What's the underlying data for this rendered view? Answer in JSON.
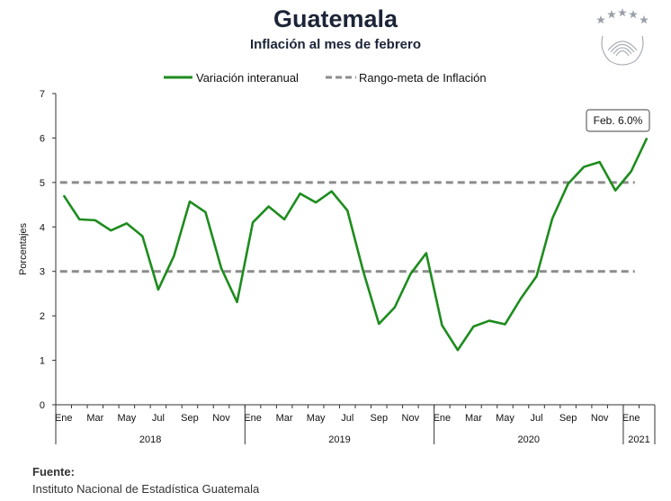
{
  "header": {
    "title": "Guatemala",
    "subtitle": "Inflación al mes de febrero"
  },
  "logo": {
    "icon": "central-bank-seal-icon",
    "color": "#9aa0a8"
  },
  "source": {
    "label": "Fuente:",
    "text": "Instituto Nacional de Estadística Guatemala"
  },
  "chart_data": {
    "type": "line",
    "ylabel": "Porcentajes",
    "ylim": [
      0,
      7
    ],
    "yticks": [
      0,
      1,
      2,
      3,
      4,
      5,
      6,
      7
    ],
    "grid": false,
    "legend_position": "top-center",
    "month_labels": [
      "Ene",
      "Mar",
      "May",
      "Jul",
      "Sep",
      "Nov",
      "Ene",
      "Mar",
      "May",
      "Jul",
      "Sep",
      "Nov",
      "Ene",
      "Mar",
      "May",
      "Jul",
      "Sep",
      "Nov",
      "Ene"
    ],
    "year_labels": [
      "2018",
      "2019",
      "2020",
      "2021"
    ],
    "x": [
      "2018-01",
      "2018-02",
      "2018-03",
      "2018-04",
      "2018-05",
      "2018-06",
      "2018-07",
      "2018-08",
      "2018-09",
      "2018-10",
      "2018-11",
      "2018-12",
      "2019-01",
      "2019-02",
      "2019-03",
      "2019-04",
      "2019-05",
      "2019-06",
      "2019-07",
      "2019-08",
      "2019-09",
      "2019-10",
      "2019-11",
      "2019-12",
      "2020-01",
      "2020-02",
      "2020-03",
      "2020-04",
      "2020-05",
      "2020-06",
      "2020-07",
      "2020-08",
      "2020-09",
      "2020-10",
      "2020-11",
      "2020-12",
      "2021-01",
      "2021-02"
    ],
    "series": [
      {
        "name": "Variación interanual",
        "color": "#1e8c1e",
        "style": "solid",
        "values": [
          4.71,
          4.17,
          4.15,
          3.92,
          4.08,
          3.79,
          2.59,
          3.35,
          4.57,
          4.33,
          3.07,
          2.31,
          4.1,
          4.46,
          4.17,
          4.75,
          4.55,
          4.8,
          4.37,
          3.01,
          1.82,
          2.19,
          2.94,
          3.41,
          1.79,
          1.23,
          1.76,
          1.89,
          1.81,
          2.39,
          2.89,
          4.19,
          4.97,
          5.35,
          5.46,
          4.82,
          5.25,
          6.0
        ]
      },
      {
        "name": "Rango-meta de Inflación",
        "color": "#8c8c8c",
        "style": "dashed",
        "upper": 5,
        "lower": 3
      }
    ],
    "annotation": {
      "text": "Feb. 6.0%",
      "x": "2021-02",
      "y": 6.0
    }
  }
}
